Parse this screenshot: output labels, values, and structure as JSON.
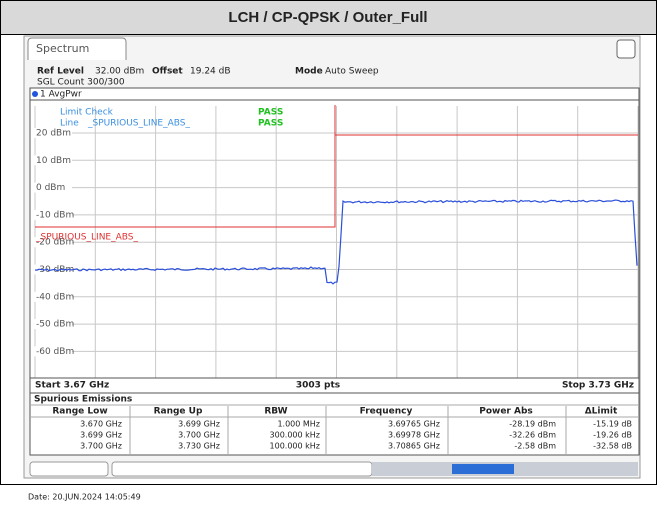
{
  "title": "LCH / CP-QPSK / Outer_Full",
  "tab": "Spectrum",
  "settings": {
    "ref_level_label": "Ref Level",
    "ref_level": "32.00 dBm",
    "offset_label": "Offset",
    "offset": "19.24 dB",
    "mode_label": "Mode",
    "mode": "Auto Sweep",
    "sgl_count": "SGL Count 300/300"
  },
  "trace_label": "1 AvgPwr",
  "limit_check": {
    "label": "Limit Check",
    "status": "PASS"
  },
  "line": {
    "label": "Line",
    "name": "_SPURIOUS_LINE_ABS_",
    "status": "PASS"
  },
  "limit_line_label": "_SPURIOUS_LINE_ABS_",
  "y_labels": [
    "20 dBm",
    "10 dBm",
    "0 dBm",
    "-10 dBm",
    "-20 dBm",
    "-30 dBm",
    "-40 dBm",
    "-50 dBm",
    "-60 dBm"
  ],
  "start": "Start 3.67 GHz",
  "points": "3003 pts",
  "stop": "Stop 3.73 GHz",
  "table": {
    "title": "Spurious Emissions",
    "headers": [
      "Range Low",
      "Range Up",
      "RBW",
      "Frequency",
      "Power Abs",
      "ΔLimit"
    ],
    "rows": [
      [
        "3.670 GHz",
        "3.699 GHz",
        "1.000 MHz",
        "3.69765 GHz",
        "-28.19 dBm",
        "-15.19 dB"
      ],
      [
        "3.699 GHz",
        "3.700 GHz",
        "300.000 kHz",
        "3.69978 GHz",
        "-32.26 dBm",
        "-19.26 dB"
      ],
      [
        "3.700 GHz",
        "3.730 GHz",
        "100.000 kHz",
        "3.70865 GHz",
        "-2.58 dBm",
        "-32.58 dB"
      ]
    ]
  },
  "date": "Date: 20.JUN.2024 14:05:49"
}
